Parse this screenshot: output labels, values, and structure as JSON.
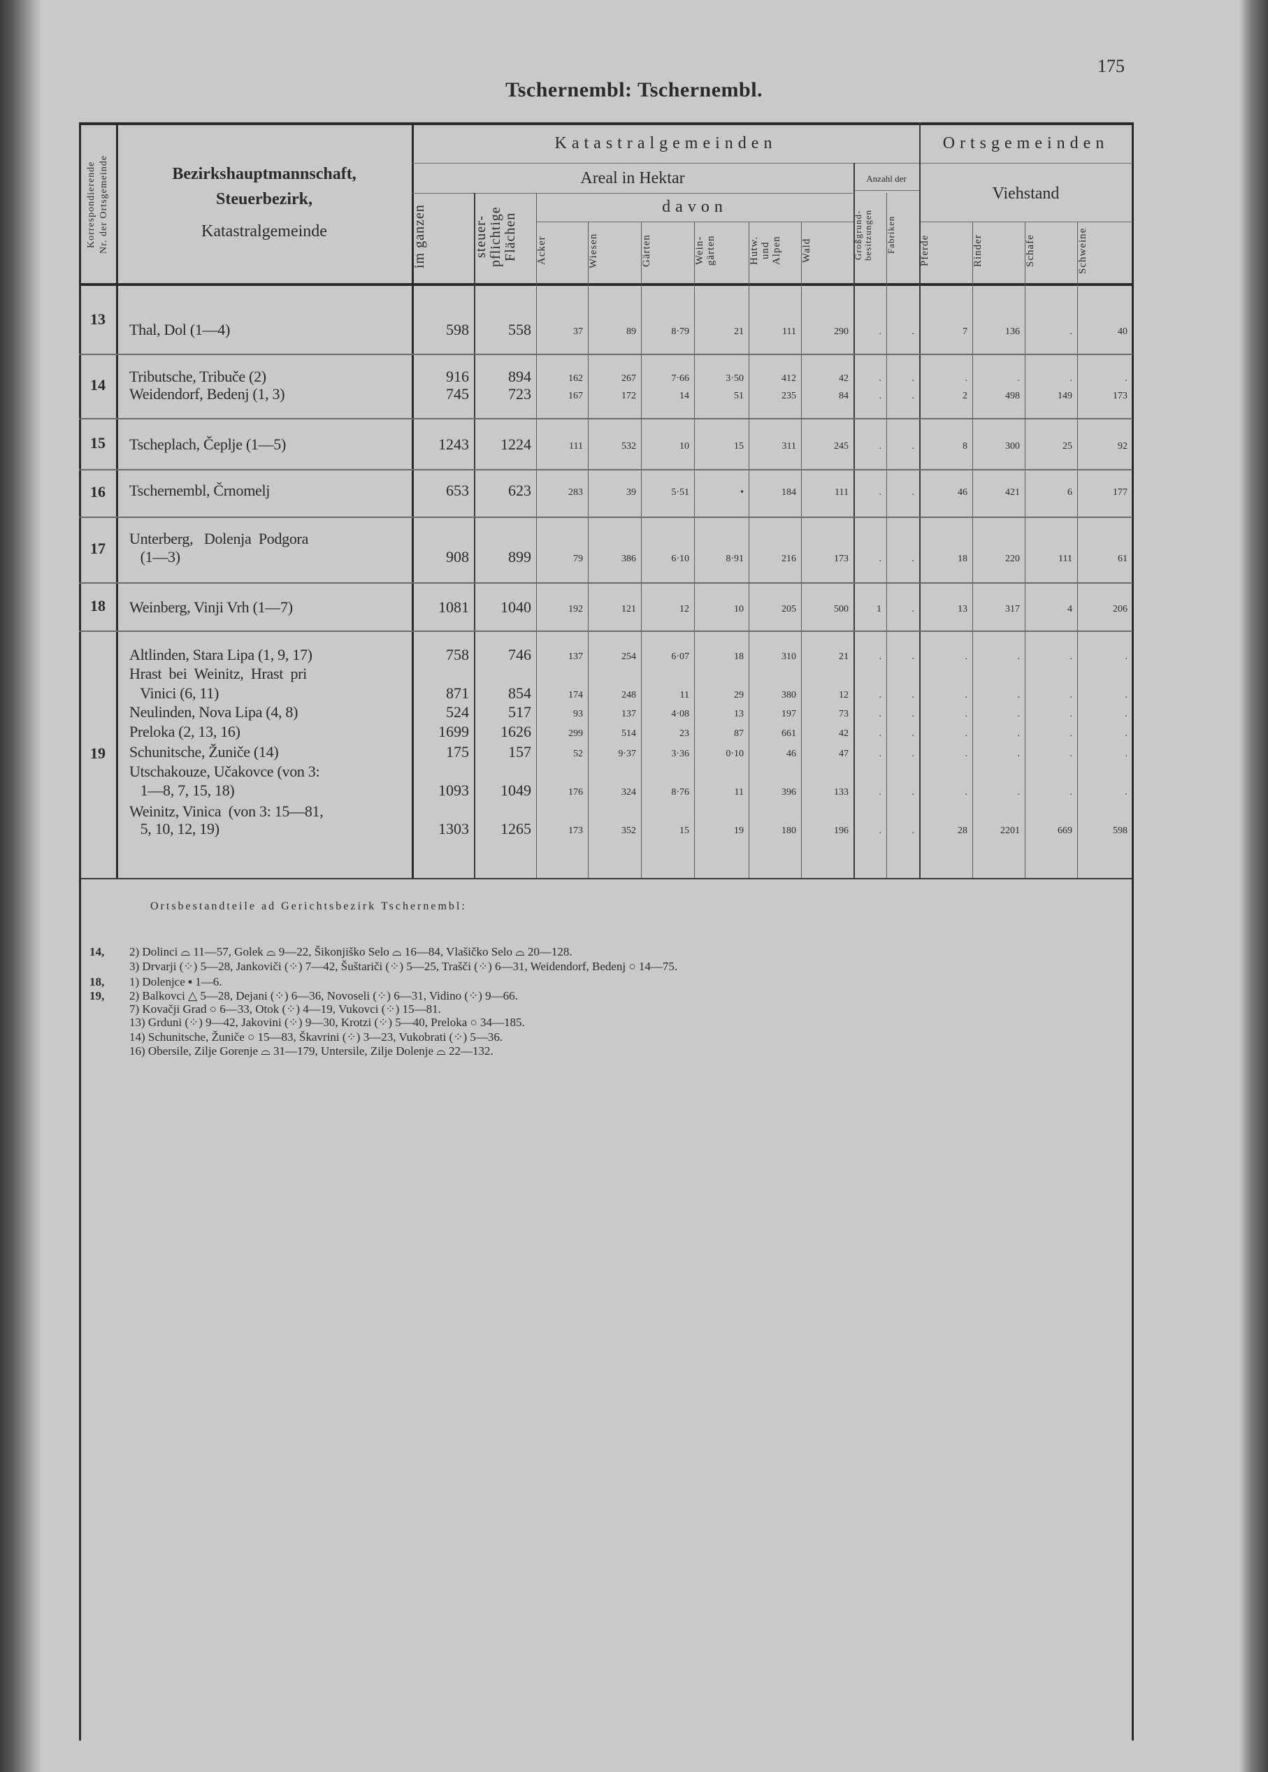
{
  "page": {
    "title": "Tschernembl: Tschernembl.",
    "page_number": "175"
  },
  "header": {
    "nr_label": "Korrespondierende\nNr. der Ortsgemeinde",
    "name_label_lines": [
      "Bezirkshauptmannschaft,",
      "Steuerbezirk,",
      "Katastralgemeinde"
    ],
    "katastral": "Katastralgemeinden",
    "ortsgemeinden": "Ortsgemeinden",
    "areal": "Areal in Hektar",
    "anzahl": "Anzahl der",
    "davon": "davon",
    "viehstand": "Viehstand",
    "columns": [
      "im ganzen",
      "steuer-\npflichtige\nFlächen",
      "Äcker",
      "Wiesen",
      "Gärten",
      "Wein-\ngärten",
      "Hutw.\nund\nAlpen",
      "Wald",
      "Großgrund-\nbesitzungen",
      "Fabriken",
      "Pferde",
      "Rinder",
      "Schafe",
      "Schweine"
    ]
  },
  "groups": [
    {
      "nr": "13",
      "entries": [
        {
          "name_lines": [
            "Thal, Dol (1—4)"
          ],
          "values": [
            "598",
            "558",
            "37",
            "89",
            "8·79",
            "21",
            "111",
            "290",
            ".",
            ".",
            "7",
            "136",
            ".",
            "40"
          ]
        }
      ]
    },
    {
      "nr": "14",
      "entries": [
        {
          "name_lines": [
            "Tributsche, Tribuče (2)"
          ],
          "values": [
            "916",
            "894",
            "162",
            "267",
            "7·66",
            "3·50",
            "412",
            "42",
            ".",
            ".",
            ".",
            ".",
            ".",
            "."
          ]
        },
        {
          "name_lines": [
            "Weidendorf, Bedenj (1, 3)"
          ],
          "values": [
            "745",
            "723",
            "167",
            "172",
            "14",
            "51",
            "235",
            "84",
            ".",
            ".",
            "2",
            "498",
            "149",
            "173"
          ]
        }
      ]
    },
    {
      "nr": "15",
      "entries": [
        {
          "name_lines": [
            "Tscheplach, Čeplje (1—5)"
          ],
          "values": [
            "1243",
            "1224",
            "111",
            "532",
            "10",
            "15",
            "311",
            "245",
            ".",
            ".",
            "8",
            "300",
            "25",
            "92"
          ]
        }
      ]
    },
    {
      "nr": "16",
      "entries": [
        {
          "name_lines": [
            "Tschernembl, Črnomelj"
          ],
          "values": [
            "653",
            "623",
            "283",
            "39",
            "5·51",
            "•",
            "184",
            "111",
            ".",
            ".",
            "46",
            "421",
            "6",
            "177"
          ]
        }
      ]
    },
    {
      "nr": "17",
      "entries": [
        {
          "name_lines": [
            "Unterberg,   Dolenja  Podgora",
            "   (1—3)"
          ],
          "values": [
            "908",
            "899",
            "79",
            "386",
            "6·10",
            "8·91",
            "216",
            "173",
            ".",
            ".",
            "18",
            "220",
            "111",
            "61"
          ]
        }
      ]
    },
    {
      "nr": "18",
      "entries": [
        {
          "name_lines": [
            "Weinberg, Vinji Vrh (1—7)"
          ],
          "values": [
            "1081",
            "1040",
            "192",
            "121",
            "12",
            "10",
            "205",
            "500",
            "1",
            ".",
            "13",
            "317",
            "4",
            "206"
          ]
        }
      ]
    },
    {
      "nr": "19",
      "entries": [
        {
          "name_lines": [
            "Altlinden, Stara Lipa (1, 9, 17)"
          ],
          "values": [
            "758",
            "746",
            "137",
            "254",
            "6·07",
            "18",
            "310",
            "21",
            ".",
            ".",
            ".",
            ".",
            ".",
            "."
          ]
        },
        {
          "name_lines": [
            "Hrast  bei  Weinitz,  Hrast  pri",
            "   Vinici (6, 11)"
          ],
          "values": [
            "871",
            "854",
            "174",
            "248",
            "11",
            "29",
            "380",
            "12",
            ".",
            ".",
            ".",
            ".",
            ".",
            "."
          ]
        },
        {
          "name_lines": [
            "Neulinden, Nova Lipa (4, 8)"
          ],
          "values": [
            "524",
            "517",
            "93",
            "137",
            "4·08",
            "13",
            "197",
            "73",
            ".",
            ".",
            ".",
            ".",
            ".",
            "."
          ]
        },
        {
          "name_lines": [
            "Preloka (2, 13, 16)"
          ],
          "values": [
            "1699",
            "1626",
            "299",
            "514",
            "23",
            "87",
            "661",
            "42",
            ".",
            ".",
            ".",
            ".",
            ".",
            "."
          ]
        },
        {
          "name_lines": [
            "Schunitsche, Žuniče (14)"
          ],
          "values": [
            "175",
            "157",
            "52",
            "9·37",
            "3·36",
            "0·10",
            "46",
            "47",
            ".",
            ".",
            ".",
            ".",
            ".",
            "."
          ]
        },
        {
          "name_lines": [
            "Utschakouze, Učakovce (von 3:",
            "   1—8, 7, 15, 18)"
          ],
          "values": [
            "1093",
            "1049",
            "176",
            "324",
            "8·76",
            "11",
            "396",
            "133",
            ".",
            ".",
            ".",
            ".",
            ".",
            "."
          ]
        },
        {
          "name_lines": [
            "Weinitz, Vinica  (von 3: 15—81,",
            "   5, 10, 12, 19)"
          ],
          "values": [
            "1303",
            "1265",
            "173",
            "352",
            "15",
            "19",
            "180",
            "196",
            ".",
            ".",
            "28",
            "2201",
            "669",
            "598"
          ]
        }
      ]
    }
  ],
  "footnotes": {
    "heading": "Ortsbestandteile ad Gerichtsbezirk Tschernembl:",
    "lines": [
      {
        "prefix": "14,",
        "text": "2) Dolinci ⌓ 11—57, Golek ⌓ 9—22, Šikonjiško Selo ⌓ 16—84, Vlašičko Selo ⌓ 20—128."
      },
      {
        "prefix": "",
        "text": "3) Drvarji (⁘) 5—28, Jankoviči (⁘) 7—42, Šuštariči (⁘) 5—25, Trašči (⁘) 6—31, Weidendorf, Bedenj ○ 14—75."
      },
      {
        "prefix": "18,",
        "text": "1) Dolenjce ▪ 1—6."
      },
      {
        "prefix": "19,",
        "text": "2) Balkovci △ 5—28, Dejani (⁘) 6—36, Novoseli (⁘) 6—31, Vidino (⁘) 9—66."
      },
      {
        "prefix": "",
        "text": "7) Kovačji Grad ○ 6—33, Otok (⁘) 4—19, Vukovci (⁘) 15—81."
      },
      {
        "prefix": "",
        "text": "13) Grduni (⁘) 9—42, Jakovini (⁘) 9—30, Krotzi (⁘) 5—40, Preloka ○ 34—185."
      },
      {
        "prefix": "",
        "text": "14) Schunitsche, Žuniče ○ 15—83, Škavrini (⁘) 3—23, Vukobrati (⁘) 5—36."
      },
      {
        "prefix": "",
        "text": "16) Obersile, Zilje Gorenje ⌓ 31—179, Untersile, Zilje Dolenje ⌓ 22—132."
      }
    ]
  }
}
